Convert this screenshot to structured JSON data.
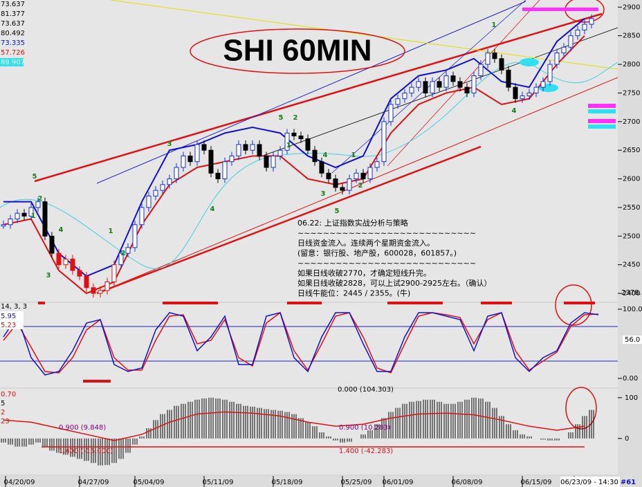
{
  "chart_data": {
    "type": "candle",
    "title": "SHI 60MIN",
    "left_labels": [
      "73.637",
      "81.377",
      "73.637",
      "80.492",
      "73.335",
      "57.726",
      "89.907"
    ],
    "closes": [
      2520,
      2530,
      2540,
      2535,
      2550,
      2560,
      2500,
      2470,
      2450,
      2460,
      2440,
      2430,
      2410,
      2400,
      2405,
      2420,
      2450,
      2470,
      2480,
      2520,
      2550,
      2570,
      2580,
      2590,
      2600,
      2620,
      2640,
      2630,
      2660,
      2650,
      2610,
      2600,
      2630,
      2640,
      2660,
      2650,
      2660,
      2640,
      2620,
      2640,
      2650,
      2680,
      2675,
      2670,
      2650,
      2630,
      2610,
      2600,
      2585,
      2580,
      2600,
      2610,
      2600,
      2620,
      2630,
      2700,
      2730,
      2740,
      2750,
      2760,
      2770,
      2750,
      2770,
      2760,
      2780,
      2770,
      2760,
      2750,
      2780,
      2800,
      2820,
      2810,
      2790,
      2760,
      2740,
      2745,
      2750,
      2760,
      2770,
      2800,
      2820,
      2830,
      2850,
      2860,
      2870,
      2880
    ],
    "bands": {
      "x": [
        0,
        4,
        8,
        12,
        16,
        20,
        24,
        28,
        32,
        36,
        40,
        44,
        48,
        52,
        56,
        60,
        64,
        68,
        72,
        76,
        80,
        84
      ],
      "series": [
        {
          "color": "#1010d0",
          "values": [
            2560,
            2560,
            2470,
            2430,
            2450,
            2560,
            2650,
            2660,
            2680,
            2690,
            2680,
            2640,
            2620,
            2640,
            2740,
            2780,
            2790,
            2810,
            2770,
            2760,
            2840,
            2880
          ]
        },
        {
          "color": "#e01010",
          "values": [
            2520,
            2530,
            2440,
            2400,
            2420,
            2520,
            2590,
            2620,
            2630,
            2640,
            2640,
            2600,
            2590,
            2600,
            2680,
            2730,
            2750,
            2760,
            2730,
            2740,
            2800,
            2850
          ]
        }
      ]
    },
    "xlim": [
      0,
      88
    ],
    "xticks": [
      {
        "value": 2.3,
        "label": "04/20/09"
      },
      {
        "value": 13,
        "label": "04/27/09"
      },
      {
        "value": 21,
        "label": "05/04/09"
      },
      {
        "value": 31,
        "label": "05/11/09"
      },
      {
        "value": 41,
        "label": "05/18/09"
      },
      {
        "value": 51,
        "label": "05/25/09"
      },
      {
        "value": 57,
        "label": "06/01/09"
      },
      {
        "value": 67,
        "label": "06/08/09"
      },
      {
        "value": 77,
        "label": "06/15/09"
      },
      {
        "value": 84.5,
        "label": "06/23/09 - 14:30"
      }
    ],
    "ylim": [
      2388,
      2910
    ],
    "yticks": [
      2900,
      2850,
      2800,
      2750,
      2700,
      2650,
      2600,
      2550,
      2500,
      2450,
      2400
    ],
    "last_label": "2378.",
    "corner_label": "#61",
    "wave_labels": [
      "5",
      "2",
      "1",
      "4",
      "3",
      "1",
      "2",
      "3",
      "4",
      "5",
      "2",
      "1",
      "4",
      "3",
      "5",
      "1",
      "2",
      "1",
      "4"
    ],
    "notes": [
      "06.22: 上证指数实战分析与策略",
      "~~~~~~~~~~~~~~~~~~~~~~~~~~~~",
      "日线资金流入。连续两个星期资金流入。",
      "(留意：银行股、地产股，600028，601857。)",
      "~~~~~~~~~~~~~~~~~~~~~~~~~~~~",
      "如果日线收破2770，才确定短线升完。",
      "如果日线收破2828，可以上试2900-2925左右。（确认）",
      "日线牛能位：2445 / 2355。(牛)"
    ],
    "stoch": {
      "params": "14, 3, 3",
      "labels": [
        "5.95",
        "5.23"
      ],
      "x": [
        0,
        2,
        4,
        6,
        8,
        10,
        12,
        14,
        16,
        18,
        20,
        22,
        24,
        26,
        28,
        30,
        32,
        34,
        36,
        38,
        40,
        42,
        44,
        46,
        48,
        50,
        52,
        54,
        56,
        58,
        60,
        62,
        64,
        66,
        68,
        70,
        72,
        74,
        76,
        78,
        80,
        82,
        84,
        86
      ],
      "k": [
        60,
        90,
        30,
        5,
        10,
        40,
        80,
        85,
        20,
        10,
        15,
        70,
        95,
        90,
        40,
        60,
        90,
        20,
        20,
        90,
        95,
        30,
        10,
        60,
        95,
        95,
        50,
        10,
        10,
        60,
        95,
        95,
        90,
        85,
        40,
        90,
        95,
        30,
        10,
        30,
        40,
        80,
        95,
        92
      ],
      "d": [
        55,
        80,
        45,
        10,
        8,
        30,
        70,
        85,
        30,
        12,
        12,
        55,
        90,
        92,
        50,
        55,
        85,
        30,
        18,
        80,
        95,
        40,
        12,
        50,
        90,
        95,
        60,
        15,
        8,
        50,
        90,
        95,
        92,
        88,
        50,
        85,
        95,
        40,
        12,
        25,
        38,
        75,
        92,
        93
      ],
      "ylim": [
        -4,
        104
      ],
      "yticks": [
        {
          "value": 100,
          "label": "100.00"
        },
        {
          "value": 0,
          "label": "0.00"
        }
      ],
      "levels": [
        75,
        25
      ],
      "current": {
        "value": 56,
        "label": "56.0"
      }
    },
    "macd": {
      "labels": [
        "0.70",
        "5",
        "2",
        "23"
      ],
      "hist": [
        -10,
        -15,
        -20,
        -20,
        -15,
        -10,
        -20,
        -30,
        -35,
        -40,
        -45,
        -50,
        -55,
        -60,
        -66,
        -65,
        -60,
        -50,
        -35,
        -15,
        5,
        25,
        45,
        60,
        70,
        80,
        85,
        90,
        95,
        98,
        100,
        98,
        95,
        90,
        85,
        80,
        78,
        75,
        72,
        70,
        68,
        65,
        60,
        50,
        40,
        30,
        15,
        5,
        -5,
        -10,
        -8,
        0,
        10,
        20,
        35,
        50,
        65,
        75,
        85,
        90,
        92,
        95,
        95,
        90,
        85,
        85,
        90,
        95,
        100,
        98,
        90,
        75,
        55,
        35,
        20,
        10,
        5,
        0,
        -3,
        -5,
        -5,
        0,
        15,
        35,
        55,
        70
      ],
      "signal_x": [
        0,
        4,
        8,
        12,
        16,
        20,
        24,
        28,
        32,
        36,
        40,
        44,
        48,
        52,
        56,
        60,
        64,
        68,
        72,
        76,
        80,
        84
      ],
      "signal": [
        45,
        40,
        25,
        10,
        -5,
        10,
        40,
        60,
        65,
        62,
        55,
        40,
        30,
        35,
        50,
        60,
        62,
        58,
        45,
        30,
        20,
        30
      ],
      "ylim": [
        -85,
        115
      ],
      "yticks": [
        100,
        0
      ],
      "annotations": [
        "0.900 (9.848)",
        "1.400 (-16.000)",
        "0.000 (104.303)",
        "0.900 (10.283)",
        "1.400 (-42.283)"
      ]
    }
  }
}
